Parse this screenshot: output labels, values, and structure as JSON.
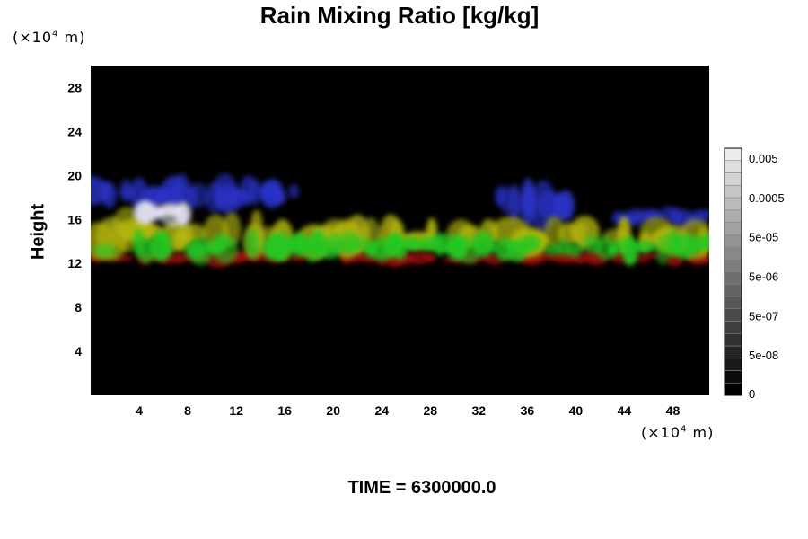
{
  "chart_data": {
    "type": "heatmap",
    "title": "Rain Mixing Ratio [kg/kg]",
    "xlabel": "",
    "ylabel": "Height",
    "x_unit_label": "(×10",
    "x_unit_exp": "4",
    "x_unit_suffix": " m)",
    "y_unit_label": "(×10",
    "y_unit_exp": "4",
    "y_unit_suffix": " m)",
    "xlim": [
      0,
      51
    ],
    "ylim": [
      0,
      30
    ],
    "x_ticks": [
      4,
      8,
      12,
      16,
      20,
      24,
      28,
      32,
      36,
      40,
      44,
      48
    ],
    "y_ticks": [
      4,
      8,
      12,
      16,
      20,
      24,
      28
    ],
    "grid": false,
    "background_color": "#000000",
    "colorbar": {
      "labels": [
        "0",
        "5e-08",
        "5e-07",
        "5e-06",
        "5e-05",
        "0.0005",
        "0.005"
      ],
      "placement": "right"
    },
    "features": [
      {
        "layer": "blue",
        "x": [
          0,
          17
        ],
        "y": [
          17,
          19.5
        ],
        "color": "#2a33c8"
      },
      {
        "layer": "blue",
        "x": [
          33,
          40
        ],
        "y": [
          16,
          19.5
        ],
        "color": "#2a33c8"
      },
      {
        "layer": "blue",
        "x": [
          43,
          51
        ],
        "y": [
          15.5,
          17
        ],
        "color": "#2a33c8"
      },
      {
        "layer": "white",
        "x": [
          4,
          8
        ],
        "y": [
          15.5,
          17.5
        ],
        "color": "#e6e6f5"
      },
      {
        "layer": "yellow",
        "x": [
          0,
          51
        ],
        "y": [
          13,
          16
        ],
        "color": "#b6b812"
      },
      {
        "layer": "green",
        "x": [
          0,
          51
        ],
        "y": [
          12.5,
          14.5
        ],
        "color": "#22c822"
      },
      {
        "layer": "red",
        "x": [
          0,
          51
        ],
        "y": [
          12,
          13
        ],
        "color": "#a01010"
      }
    ],
    "time_label": "TIME = 6300000.0"
  }
}
